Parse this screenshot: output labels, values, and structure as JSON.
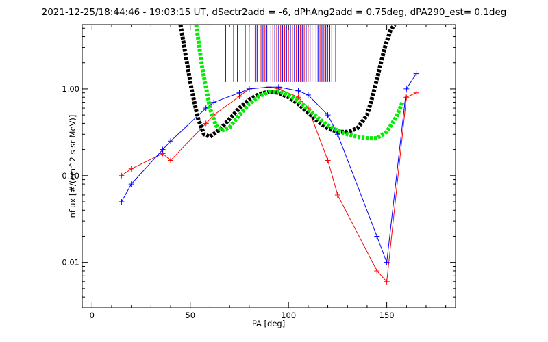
{
  "chart_data": {
    "type": "line",
    "title": "2021-12-25/18:44:46 - 19:03:15 UT, dSectr2add = -6, dPhAng2add = 0.75deg, dPA290_est=   0.1deg",
    "xlabel": "PA [deg]",
    "ylabel": "nflux [#/(cm^2 s sr MeV)]",
    "xlim": [
      -5,
      185
    ],
    "ylim": [
      0.003,
      5.5
    ],
    "yscale": "log",
    "x_ticks": [
      0,
      50,
      100,
      150
    ],
    "x_tick_labels": [
      "0",
      "50",
      "100",
      "150"
    ],
    "y_ticks": [
      0.01,
      0.1,
      1.0
    ],
    "y_tick_labels": [
      "0.01",
      "0.10",
      "1.00"
    ],
    "grid": false,
    "legend": "none",
    "colors": {
      "red_traces": "#ff0000",
      "blue_traces": "#0000ff",
      "black_fit": "#000000",
      "green_fit": "#00ee00"
    },
    "series": [
      {
        "color": "black",
        "style": "thick-dotted",
        "x": [
          45,
          48,
          51,
          54,
          57,
          60,
          65,
          70,
          75,
          80,
          85,
          90,
          95,
          100,
          105,
          110,
          115,
          120,
          125,
          130,
          135,
          140,
          143,
          146,
          149,
          152,
          154
        ],
        "values": [
          5.5,
          2.2,
          0.9,
          0.45,
          0.3,
          0.28,
          0.34,
          0.45,
          0.6,
          0.75,
          0.87,
          0.93,
          0.9,
          0.8,
          0.67,
          0.53,
          0.42,
          0.35,
          0.32,
          0.32,
          0.35,
          0.5,
          0.85,
          1.6,
          3.0,
          4.8,
          5.5
        ]
      },
      {
        "color": "green",
        "style": "thick-dotted",
        "x": [
          53,
          56,
          60,
          63,
          66,
          70,
          75,
          80,
          85,
          90,
          95,
          100,
          105,
          110,
          115,
          120,
          125,
          130,
          135,
          140,
          145,
          150,
          155,
          158
        ],
        "values": [
          5.5,
          1.8,
          0.6,
          0.38,
          0.33,
          0.36,
          0.5,
          0.67,
          0.82,
          0.92,
          0.93,
          0.85,
          0.72,
          0.58,
          0.46,
          0.38,
          0.33,
          0.3,
          0.28,
          0.27,
          0.27,
          0.32,
          0.48,
          0.7
        ]
      },
      {
        "color": "red",
        "style": "thin-line-plus",
        "x": [
          15,
          20,
          36,
          40,
          58,
          62,
          75,
          80,
          90,
          95,
          105,
          110,
          120,
          125,
          145,
          150,
          160,
          165
        ],
        "values": [
          0.1,
          0.12,
          0.18,
          0.15,
          0.4,
          0.5,
          0.82,
          1.0,
          1.05,
          1.0,
          0.8,
          0.6,
          0.15,
          0.06,
          0.008,
          0.006,
          0.8,
          0.9
        ]
      },
      {
        "color": "blue",
        "style": "thin-line-plus",
        "x": [
          15,
          20,
          36,
          40,
          58,
          62,
          75,
          80,
          90,
          95,
          105,
          110,
          120,
          125,
          145,
          150,
          160,
          165
        ],
        "values": [
          0.05,
          0.08,
          0.2,
          0.25,
          0.6,
          0.7,
          0.9,
          1.0,
          1.05,
          1.05,
          0.95,
          0.85,
          0.5,
          0.3,
          0.02,
          0.01,
          1.0,
          1.5
        ]
      }
    ],
    "vertical_markers": {
      "red_x": [
        72,
        80,
        83,
        86,
        88,
        90,
        92,
        94,
        96,
        98,
        100,
        102,
        104,
        106,
        108,
        110,
        112,
        114,
        116,
        118,
        120,
        122
      ],
      "blue_x": [
        68,
        74,
        78,
        84,
        87,
        89,
        91,
        93,
        95,
        97,
        99,
        101,
        103,
        105,
        107,
        109,
        111,
        113,
        115,
        117,
        119,
        121,
        124
      ],
      "top_value": 5.5,
      "bottom_value": 1.2
    }
  }
}
